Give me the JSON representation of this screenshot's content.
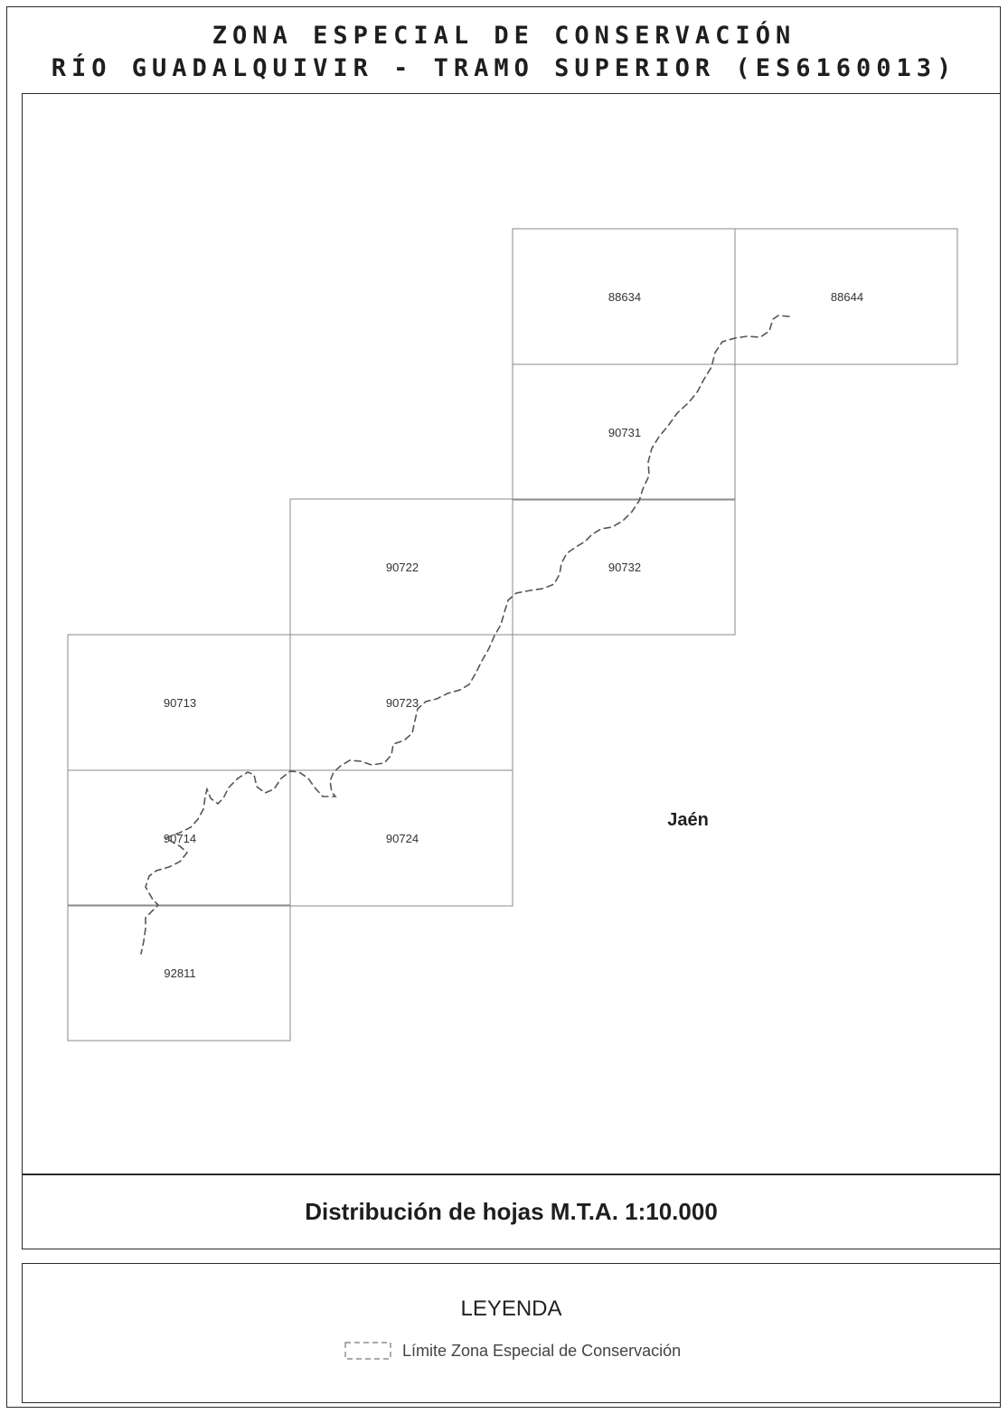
{
  "header": {
    "title_line1": "ZONA ESPECIAL DE CONSERVACIÓN",
    "title_line2": "RÍO GUADALQUIVIR - TRAMO SUPERIOR (ES6160013)"
  },
  "map": {
    "province_label": "Jaén",
    "sheets": [
      "88634",
      "88644",
      "90731",
      "90722",
      "90732",
      "90713",
      "90723",
      "90714",
      "90724",
      "92811"
    ],
    "boundary_color": "#555555",
    "grid_color": "#8a8a8a"
  },
  "caption": {
    "text": "Distribución de hojas M.T.A. 1:10.000"
  },
  "legend": {
    "title": "LEYENDA",
    "items": [
      {
        "label": "Límite Zona Especial de Conservación",
        "symbol": "dashed-boundary"
      }
    ]
  }
}
